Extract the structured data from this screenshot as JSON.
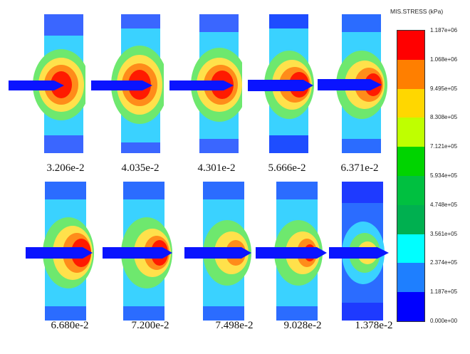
{
  "legend": {
    "title": "MIS.STRESS (kPa)",
    "ticks": [
      "1.187e+06",
      "1.068e+06",
      "9.495e+05",
      "8.308e+05",
      "7.121e+05",
      "5.934e+05",
      "4.748e+05",
      "3.561e+05",
      "2.374e+05",
      "1.187e+05",
      "0.000e+00"
    ],
    "band_colors": [
      "#ff0000",
      "#ff7f00",
      "#ffd700",
      "#bfff00",
      "#00d400",
      "#00c040",
      "#00b050",
      "#00ffff",
      "#1e7fff",
      "#0000ff"
    ]
  },
  "panels_row1": [
    {
      "time": "3.206e-2"
    },
    {
      "time": "4.035e-2"
    },
    {
      "time": "4.301e-2"
    },
    {
      "time": "5.666e-2"
    },
    {
      "time": "6.371e-2"
    }
  ],
  "panels_row2": [
    {
      "time": "6.680e-2"
    },
    {
      "time": "7.200e-2"
    },
    {
      "time": "7.498e-2"
    },
    {
      "time": "9.028e-2"
    },
    {
      "time": "1.378e-2"
    }
  ],
  "colors": {
    "plate_base": "#46c8f0",
    "projectile": "#0a14ff",
    "high": "#ff1a00",
    "mid": "#ffd800",
    "low": "#2b6cff"
  }
}
